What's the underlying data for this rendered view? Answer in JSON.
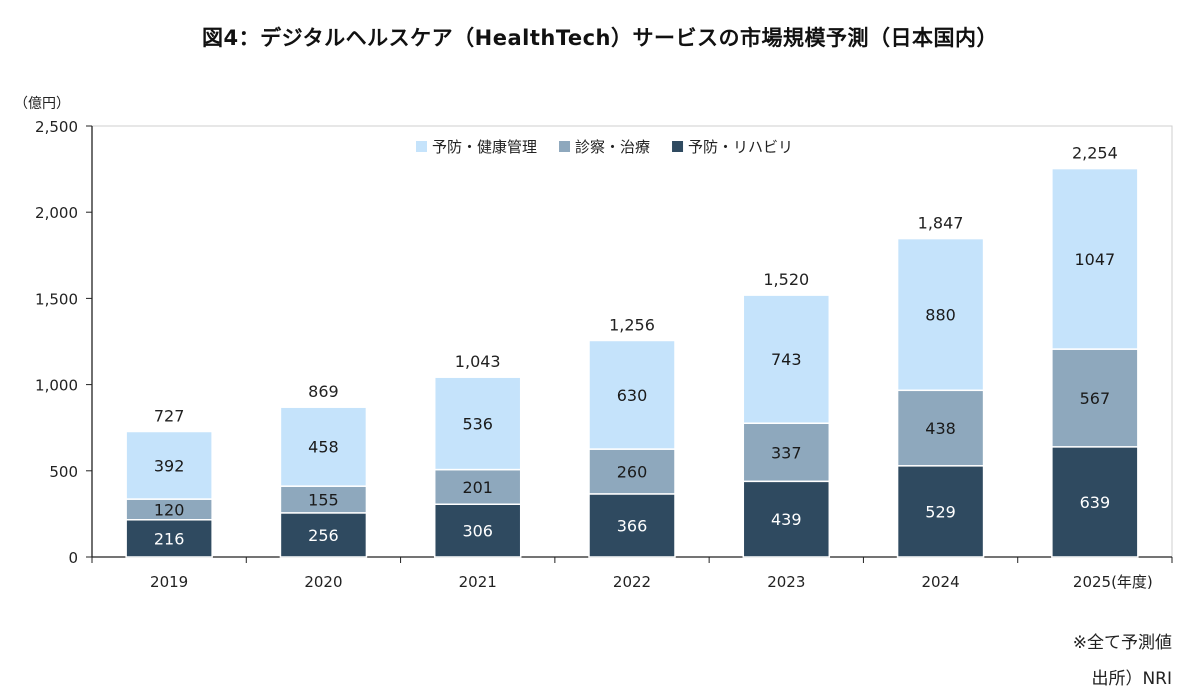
{
  "title": "図4：デジタルヘルスケア（HealthTech）サービスの市場規模予測（日本国内）",
  "footnote": "※全て予測値",
  "source": "出所）NRI",
  "colors": {
    "series_top": "#c5e3fb",
    "series_mid": "#8ea8bd",
    "series_bottom": "#2f4a60",
    "axis": "#222222"
  },
  "chart_data": {
    "type": "bar",
    "stacked": true,
    "unit_label": "（億円）",
    "x_suffix_label": "(年度)",
    "categories": [
      "2019",
      "2020",
      "2021",
      "2022",
      "2023",
      "2024",
      "2025"
    ],
    "series": [
      {
        "name": "予防・リハビリ",
        "values": [
          216,
          256,
          306,
          366,
          439,
          529,
          639
        ]
      },
      {
        "name": "診察・治療",
        "values": [
          120,
          155,
          201,
          260,
          337,
          438,
          567
        ]
      },
      {
        "name": "予防・健康管理",
        "values": [
          392,
          458,
          536,
          630,
          743,
          880,
          1047
        ]
      }
    ],
    "totals": [
      "727",
      "869",
      "1,043",
      "1,256",
      "1,520",
      "1,847",
      "2,254"
    ],
    "legend_order": [
      "予防・健康管理",
      "診察・治療",
      "予防・リハビリ"
    ],
    "ylim": [
      0,
      2500
    ],
    "yticks": [
      0,
      500,
      1000,
      1500,
      2000,
      2500
    ],
    "ytick_labels": [
      "0",
      "500",
      "1,000",
      "1,500",
      "2,000",
      "2,500"
    ],
    "grid": false,
    "legend_position": "top-center"
  }
}
